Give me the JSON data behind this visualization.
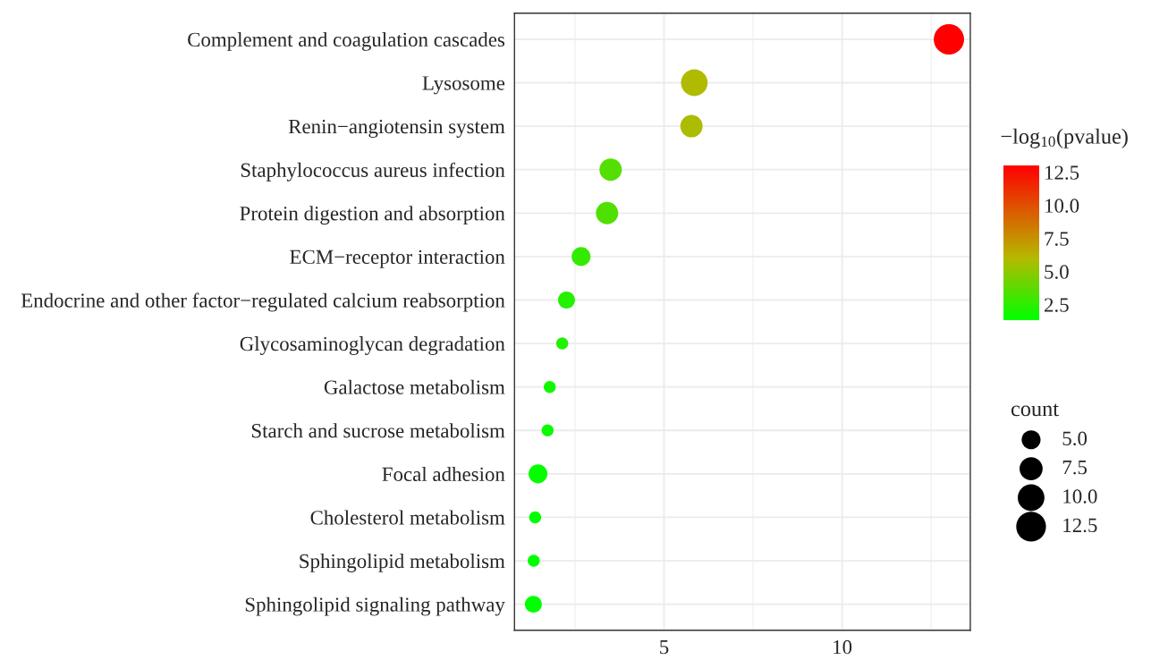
{
  "chart_data": {
    "type": "bubble",
    "categories": [
      "Complement and coagulation cascades",
      "Lysosome",
      "Renin−angiotensin system",
      "Staphylococcus aureus infection",
      "Protein digestion and absorption",
      "ECM−receptor interaction",
      "Endocrine and other factor−regulated calcium reabsorption",
      "Glycosaminoglycan degradation",
      "Galactose metabolism",
      "Starch and sucrose metabolism",
      "Focal adhesion",
      "Cholesterol metabolism",
      "Sphingolipid metabolism",
      "Sphingolipid signaling pathway"
    ],
    "orientation": "horizontal",
    "values": [
      13.0,
      5.85,
      5.77,
      3.5,
      3.4,
      2.67,
      2.26,
      2.14,
      1.79,
      1.73,
      1.46,
      1.38,
      1.34,
      1.33
    ],
    "cvalues": [
      13.0,
      5.85,
      5.77,
      3.5,
      3.4,
      2.67,
      2.26,
      2.14,
      1.79,
      1.73,
      1.46,
      1.38,
      1.34,
      1.33
    ],
    "sizes": [
      13,
      10,
      7,
      7,
      7,
      5,
      4,
      2,
      2,
      2,
      5,
      2,
      2,
      4
    ],
    "size_legend": [
      {
        "value": 5,
        "label": "5.0"
      },
      {
        "value": 7.5,
        "label": "7.5"
      },
      {
        "value": 10,
        "label": "10.0"
      },
      {
        "value": 12.5,
        "label": "12.5"
      }
    ],
    "legend_title": "count",
    "clabel": "−log$_{10}$(pvalue)",
    "clim": [
      1.33,
      13.0
    ],
    "cticks": [
      {
        "value": 2.5,
        "label": "2.5"
      },
      {
        "value": 5,
        "label": "5.0"
      },
      {
        "value": 7.5,
        "label": "7.5"
      },
      {
        "value": 10,
        "label": "10.0"
      },
      {
        "value": 12.5,
        "label": "12.5"
      }
    ],
    "xlim": [
      0.8,
      13.6
    ],
    "xticks": [
      5,
      10
    ],
    "grid": true
  }
}
